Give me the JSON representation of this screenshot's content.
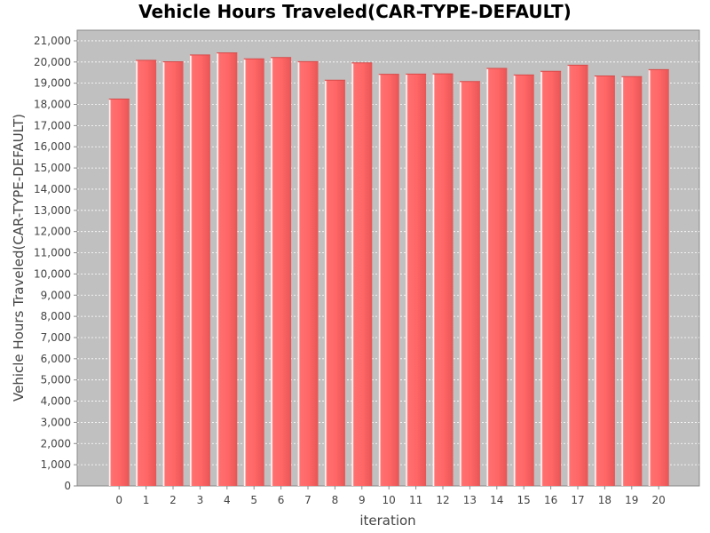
{
  "chart_data": {
    "type": "bar",
    "title": "Vehicle Hours Traveled(CAR-TYPE-DEFAULT)",
    "xlabel": "iteration",
    "ylabel": "Vehicle Hours Traveled(CAR-TYPE-DEFAULT)",
    "categories": [
      "0",
      "1",
      "2",
      "3",
      "4",
      "5",
      "6",
      "7",
      "8",
      "9",
      "10",
      "11",
      "12",
      "13",
      "14",
      "15",
      "16",
      "17",
      "18",
      "19",
      "20"
    ],
    "values": [
      18250,
      20080,
      20010,
      20330,
      20430,
      20150,
      20210,
      20020,
      19140,
      19960,
      19420,
      19430,
      19440,
      19080,
      19700,
      19390,
      19560,
      19850,
      19340,
      19310,
      19640
    ],
    "ylim": [
      0,
      21500
    ],
    "yticks": [
      0,
      1000,
      2000,
      3000,
      4000,
      5000,
      6000,
      7000,
      8000,
      9000,
      10000,
      11000,
      12000,
      13000,
      14000,
      15000,
      16000,
      17000,
      18000,
      19000,
      20000,
      21000
    ],
    "ytick_labels": [
      "0",
      "1,000",
      "2,000",
      "3,000",
      "4,000",
      "5,000",
      "6,000",
      "7,000",
      "8,000",
      "9,000",
      "10,000",
      "11,000",
      "12,000",
      "13,000",
      "14,000",
      "15,000",
      "16,000",
      "17,000",
      "18,000",
      "19,000",
      "20,000",
      "21,000"
    ],
    "grid": true,
    "legend": "none",
    "colors": {
      "bar": "#ff6666",
      "bar_highlight": "#ffb3b3",
      "bar_shadow": "#d94a4a",
      "plot_background": "#c0c0c0",
      "grid": "#ffffff",
      "axis": "#888888"
    }
  }
}
